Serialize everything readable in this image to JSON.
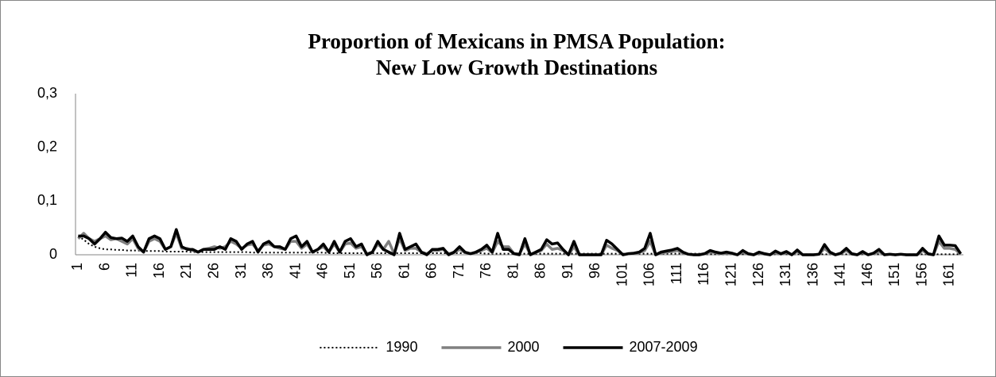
{
  "chart_data": {
    "type": "line",
    "title": [
      "Proportion of Mexicans in PMSA Population:",
      "New Low Growth Destinations"
    ],
    "categories": [
      1,
      null,
      null,
      null,
      null,
      6,
      null,
      null,
      null,
      null,
      11,
      null,
      null,
      null,
      null,
      16,
      null,
      null,
      null,
      null,
      21,
      null,
      null,
      null,
      null,
      26,
      null,
      null,
      null,
      null,
      31,
      null,
      null,
      null,
      null,
      36,
      null,
      null,
      null,
      null,
      41,
      null,
      null,
      null,
      null,
      46,
      null,
      null,
      null,
      null,
      51,
      null,
      null,
      null,
      null,
      56,
      null,
      null,
      null,
      null,
      61,
      null,
      null,
      null,
      null,
      66,
      null,
      null,
      null,
      null,
      71,
      null,
      null,
      null,
      null,
      76,
      null,
      null,
      null,
      null,
      81,
      null,
      null,
      null,
      null,
      86,
      null,
      null,
      null,
      null,
      91,
      null,
      null,
      null,
      null,
      96,
      null,
      null,
      null,
      null,
      101,
      null,
      null,
      null,
      null,
      106,
      null,
      null,
      null,
      null,
      111,
      null,
      null,
      null,
      null,
      116,
      null,
      null,
      null,
      null,
      121,
      null,
      null,
      null,
      null,
      126,
      null,
      null,
      null,
      null,
      131,
      null,
      null,
      null,
      null,
      136,
      null,
      null,
      null,
      null,
      141,
      null,
      null,
      null,
      null,
      146,
      null,
      null,
      null,
      null,
      151,
      null,
      null,
      null,
      null,
      156,
      null,
      null,
      null,
      null,
      161,
      null,
      null
    ],
    "series": [
      {
        "name": "1990",
        "color": "#000000",
        "style": "dotted",
        "values": [
          0.035,
          0.028,
          0.02,
          0.015,
          0.012,
          0.01,
          0.01,
          0.009,
          0.009,
          0.008,
          0.008,
          0.008,
          0.007,
          0.007,
          0.007,
          0.007,
          0.006,
          0.006,
          0.006,
          0.006,
          0.006,
          0.005,
          0.005,
          0.005,
          0.005,
          0.005,
          0.005,
          0.005,
          0.005,
          0.005,
          0.005,
          0.005,
          0.004,
          0.004,
          0.004,
          0.004,
          0.004,
          0.004,
          0.004,
          0.004,
          0.004,
          0.004,
          0.004,
          0.004,
          0.004,
          0.004,
          0.003,
          0.003,
          0.003,
          0.003,
          0.003,
          0.003,
          0.003,
          0.003,
          0.003,
          0.003,
          0.003,
          0.003,
          0.003,
          0.003,
          0.003,
          0.003,
          0.003,
          0.003,
          0.003,
          0.003,
          0.003,
          0.003,
          0.003,
          0.003,
          0.003,
          0.003,
          0.003,
          0.003,
          0.003,
          0.002,
          0.002,
          0.002,
          0.002,
          0.002,
          0.002,
          0.002,
          0.002,
          0.002,
          0.002,
          0.002,
          0.002,
          0.002,
          0.002,
          0.002,
          0.002,
          0.002,
          0.002,
          0.002,
          0.002,
          0.002,
          0.002,
          0.002,
          0.002,
          0.002,
          0.002,
          0.002,
          0.002,
          0.002,
          0.002,
          0.002,
          0.002,
          0.002,
          0.002,
          0.002,
          0.002,
          0.002,
          0.002,
          0.002,
          0.002,
          0.001,
          0.001,
          0.001,
          0.001,
          0.001,
          0.001,
          0.001,
          0.001,
          0.001,
          0.001,
          0.001,
          0.001,
          0.001,
          0.001,
          0.001,
          0.001,
          0.001,
          0.001,
          0.001,
          0.001,
          0.001,
          0.001,
          0.001,
          0.001,
          0.001,
          0.001,
          0.001,
          0.001,
          0.001,
          0.001,
          0.001,
          0.001,
          0.001,
          0.001,
          0.001,
          0.001,
          0.001,
          0.001,
          0.001,
          0.001,
          0.001,
          0.001,
          0.001,
          0.001,
          0.001,
          0.001,
          0.001,
          0.001
        ]
      },
      {
        "name": "2000",
        "color": "#808080",
        "style": "solid",
        "values": [
          0.03,
          0.04,
          0.03,
          0.025,
          0.03,
          0.035,
          0.028,
          0.03,
          0.025,
          0.02,
          0.03,
          0.012,
          0.005,
          0.025,
          0.03,
          0.025,
          0.01,
          0.015,
          0.04,
          0.012,
          0.012,
          0.008,
          0.005,
          0.01,
          0.012,
          0.015,
          0.012,
          0.015,
          0.025,
          0.02,
          0.012,
          0.018,
          0.02,
          0.008,
          0.018,
          0.02,
          0.015,
          0.012,
          0.01,
          0.025,
          0.025,
          0.012,
          0.02,
          0.005,
          0.01,
          0.015,
          0.005,
          0.02,
          0.005,
          0.02,
          0.022,
          0.012,
          0.015,
          0.002,
          0.005,
          0.02,
          0.01,
          0.025,
          0.002,
          0.03,
          0.008,
          0.012,
          0.012,
          0.005,
          0.002,
          0.008,
          0.008,
          0.01,
          0.002,
          0.004,
          0.01,
          0.004,
          0.002,
          0.004,
          0.008,
          0.012,
          0.004,
          0.025,
          0.015,
          0.015,
          0.002,
          0.002,
          0.02,
          0.001,
          0.004,
          0.008,
          0.02,
          0.01,
          0.012,
          0.008,
          0,
          0.015,
          0,
          0,
          0,
          0,
          0,
          0.018,
          0.012,
          0.008,
          0,
          0.002,
          0.002,
          0.004,
          0.008,
          0.025,
          0,
          0.003,
          0.005,
          0.006,
          0.008,
          0.003,
          0.001,
          0,
          0,
          0.002,
          0.005,
          0.004,
          0.002,
          0.003,
          0.002,
          0,
          0.005,
          0.001,
          0,
          0.003,
          0.001,
          0,
          0.004,
          0.001,
          0.004,
          0,
          0.006,
          0,
          0,
          0,
          0.001,
          0.012,
          0.003,
          0,
          0.002,
          0.008,
          0.001,
          0,
          0.004,
          0,
          0.002,
          0.006,
          0,
          0.001,
          0,
          0.001,
          0,
          0,
          0,
          0.008,
          0.001,
          0,
          0.025,
          0.012,
          0.012,
          0.01,
          0.001
        ]
      },
      {
        "name": "2007-2009",
        "color": "#000000",
        "style": "solid",
        "values": [
          0.035,
          0.035,
          0.03,
          0.02,
          0.03,
          0.042,
          0.032,
          0.03,
          0.031,
          0.025,
          0.035,
          0.015,
          0.005,
          0.03,
          0.035,
          0.03,
          0.01,
          0.015,
          0.047,
          0.015,
          0.01,
          0.01,
          0.005,
          0.01,
          0.01,
          0.01,
          0.015,
          0.01,
          0.03,
          0.025,
          0.01,
          0.02,
          0.025,
          0.005,
          0.02,
          0.025,
          0.015,
          0.015,
          0.01,
          0.03,
          0.035,
          0.015,
          0.025,
          0.005,
          0.01,
          0.02,
          0.005,
          0.025,
          0.005,
          0.025,
          0.03,
          0.015,
          0.02,
          0,
          0.005,
          0.025,
          0.01,
          0.005,
          0,
          0.04,
          0.01,
          0.015,
          0.02,
          0.005,
          0,
          0.01,
          0.01,
          0.012,
          0,
          0.005,
          0.015,
          0.005,
          0.002,
          0.005,
          0.01,
          0.018,
          0.005,
          0.04,
          0.01,
          0.01,
          0.002,
          0,
          0.03,
          0,
          0.005,
          0.01,
          0.028,
          0.02,
          0.022,
          0.01,
          0,
          0.025,
          0,
          0,
          0,
          0,
          0,
          0.027,
          0.02,
          0.01,
          0,
          0.002,
          0.003,
          0.005,
          0.012,
          0.04,
          0,
          0.005,
          0.007,
          0.009,
          0.012,
          0.005,
          0.001,
          0,
          0,
          0.002,
          0.008,
          0.005,
          0.003,
          0.005,
          0.003,
          0,
          0.008,
          0.002,
          0,
          0.005,
          0.002,
          0,
          0.007,
          0.002,
          0.006,
          0,
          0.009,
          0,
          0,
          0,
          0.001,
          0.019,
          0.005,
          0,
          0.003,
          0.012,
          0.002,
          0,
          0.006,
          0,
          0.003,
          0.01,
          0,
          0.001,
          0,
          0.001,
          0,
          0,
          0,
          0.012,
          0.002,
          0,
          0.035,
          0.018,
          0.018,
          0.017,
          0.002
        ]
      }
    ],
    "ylim": [
      0,
      0.3
    ],
    "yticks": [
      0,
      {
        "value": 0.1,
        "label": "0,1"
      },
      {
        "value": 0.2,
        "label": "0,2"
      },
      {
        "value": 0.3,
        "label": "0,3"
      }
    ],
    "grid": false,
    "legend": "bottom"
  }
}
